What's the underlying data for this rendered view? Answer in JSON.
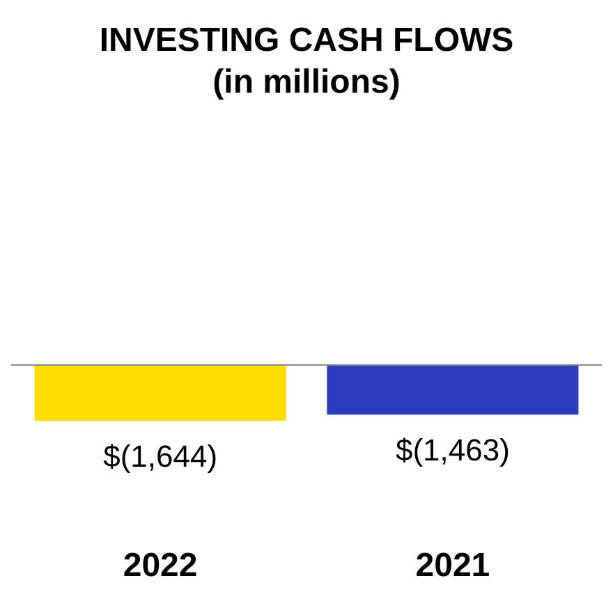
{
  "chart_data": {
    "type": "bar",
    "title": "INVESTING CASH FLOWS",
    "subtitle": "(in millions)",
    "categories": [
      "2022",
      "2021"
    ],
    "values": [
      -1644,
      -1463
    ],
    "colors": [
      "#ffdd00",
      "#2b3cc0"
    ],
    "value_labels": [
      "$(1,644)",
      "$(1,463)"
    ]
  }
}
